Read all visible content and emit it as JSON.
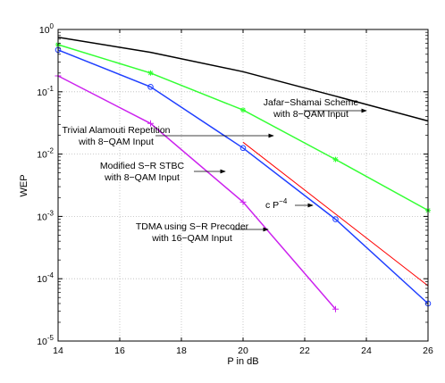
{
  "chart_data": {
    "type": "line",
    "title": "",
    "xlabel": "P in dB",
    "ylabel": "WEP",
    "xlim": [
      14,
      26
    ],
    "ylim": [
      1e-05,
      1
    ],
    "yscale": "log",
    "grid": true,
    "x_ticks": [
      "14",
      "16",
      "18",
      "20",
      "22",
      "24",
      "26"
    ],
    "y_ticks": [
      {
        "base": "10",
        "exp": "0",
        "value": 1
      },
      {
        "base": "10",
        "exp": "-1",
        "value": 0.1
      },
      {
        "base": "10",
        "exp": "-2",
        "value": 0.01
      },
      {
        "base": "10",
        "exp": "-3",
        "value": 0.001
      },
      {
        "base": "10",
        "exp": "-4",
        "value": 0.0001
      },
      {
        "base": "10",
        "exp": "-5",
        "value": 1e-05
      }
    ],
    "series": [
      {
        "id": "jafar",
        "color": "#000000",
        "marker": "none",
        "x": [
          14,
          17,
          20,
          23,
          26
        ],
        "y": [
          0.75,
          0.43,
          0.21,
          0.085,
          0.034
        ]
      },
      {
        "id": "trivial",
        "color": "#33ff33",
        "marker": "star",
        "x": [
          14,
          17,
          20,
          23,
          26
        ],
        "y": [
          0.57,
          0.2,
          0.051,
          0.0082,
          0.00125
        ]
      },
      {
        "id": "srstbc",
        "color": "#1f3fff",
        "marker": "circle",
        "x": [
          14,
          17,
          20,
          23,
          26
        ],
        "y": [
          0.47,
          0.12,
          0.0125,
          0.0009,
          4e-05
        ]
      },
      {
        "id": "tdma",
        "color": "#cc22ee",
        "marker": "plus",
        "x": [
          14,
          17,
          20,
          23
        ],
        "y": [
          0.18,
          0.031,
          0.0017,
          3.25e-05
        ]
      },
      {
        "id": "reference",
        "color": "#ff0000",
        "marker": "none",
        "x": [
          20,
          26
        ],
        "y": [
          0.0155,
          7.7e-05
        ]
      }
    ],
    "annotations": [
      {
        "lines": [
          "Jafar−Shamai Scheme",
          "with 8−QAM Input"
        ],
        "target": "jafar"
      },
      {
        "lines": [
          "Trivial Alamouti Repetition",
          "with 8−QAM Input"
        ],
        "target": "trivial"
      },
      {
        "lines": [
          "Modified S−R STBC",
          "with 8−QAM Input"
        ],
        "target": "srstbc"
      },
      {
        "lines": [
          "TDMA using  S−R Precoder",
          "with 16−QAM Input"
        ],
        "target": "tdma"
      },
      {
        "lines": [
          "c P"
        ],
        "sup": "−4",
        "target": "reference"
      }
    ]
  }
}
